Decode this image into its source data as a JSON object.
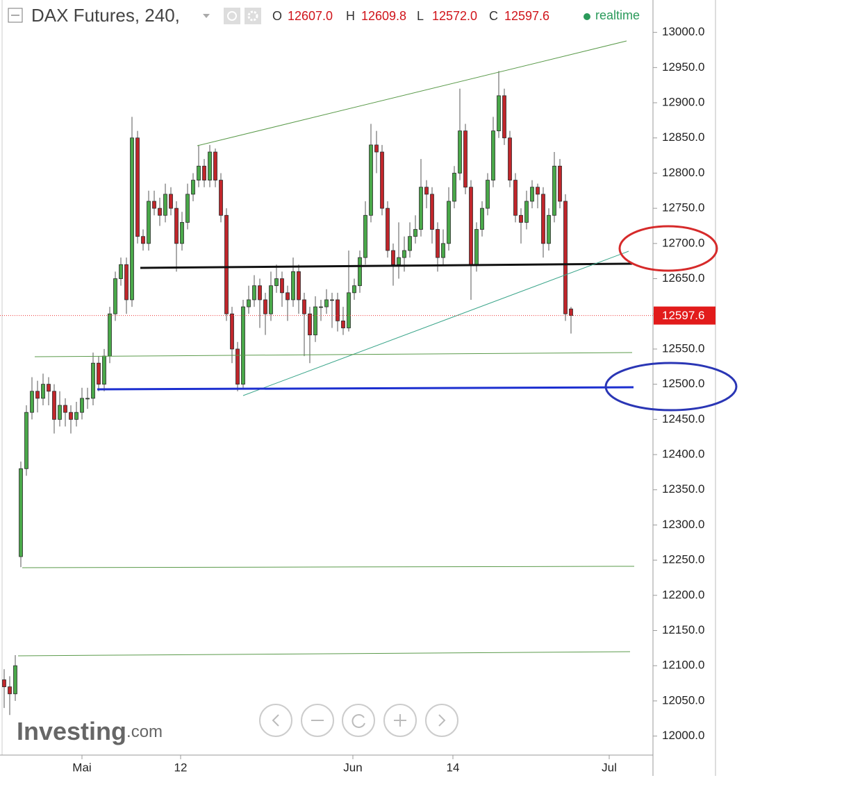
{
  "chart_data": {
    "type": "candlestick",
    "title": "DAX Futures, 240,",
    "status": "realtime",
    "ohlc_legend": [
      {
        "key": "O",
        "text": "12607.0"
      },
      {
        "key": "H",
        "text": "12609.8"
      },
      {
        "key": "L",
        "text": "12572.0"
      },
      {
        "key": "C",
        "text": "12597.6"
      }
    ],
    "watermark": "Investing",
    "watermark_suffix": ".com",
    "up_color": "#4aa84a",
    "down_color": "#c0262b",
    "x": [
      0,
      1,
      2,
      3,
      4,
      5,
      6,
      7,
      8,
      9,
      10,
      11,
      12,
      13,
      14,
      15,
      16,
      17,
      18,
      19,
      20,
      21,
      22,
      23,
      24,
      25,
      26,
      27,
      28,
      29,
      30,
      31,
      32,
      33,
      34,
      35,
      36,
      37,
      38,
      39,
      40,
      41,
      42,
      43,
      44,
      45,
      46,
      47,
      48,
      49,
      50,
      51,
      52,
      53,
      54,
      55,
      56,
      57,
      58,
      59,
      60,
      61,
      62,
      63,
      64,
      65,
      66,
      67,
      68,
      69,
      70,
      71,
      72,
      73,
      74,
      75,
      76,
      77,
      78,
      79,
      80,
      81,
      82,
      83,
      84,
      85,
      86,
      87,
      88,
      89,
      90,
      91,
      92,
      93,
      94,
      95,
      96,
      97,
      98,
      99,
      100,
      101,
      102
    ],
    "open": [
      12080,
      12070,
      12060,
      12255,
      12380,
      12460,
      12490,
      12480,
      12500,
      12490,
      12450,
      12470,
      12460,
      12450,
      12460,
      12480,
      12480,
      12530,
      12500,
      12540,
      12600,
      12650,
      12670,
      12620,
      12850,
      12710,
      12700,
      12760,
      12750,
      12740,
      12770,
      12750,
      12700,
      12730,
      12770,
      12790,
      12810,
      12790,
      12830,
      12790,
      12740,
      12600,
      12550,
      12500,
      12610,
      12620,
      12640,
      12620,
      12600,
      12640,
      12650,
      12630,
      12620,
      12660,
      12620,
      12600,
      12570,
      12610,
      12610,
      12620,
      12620,
      12590,
      12580,
      12630,
      12640,
      12680,
      12740,
      12840,
      12830,
      12750,
      12690,
      12670,
      12680,
      12690,
      12710,
      12720,
      12780,
      12770,
      12720,
      12680,
      12700,
      12760,
      12800,
      12860,
      12780,
      12670,
      12720,
      12750,
      12790,
      12860,
      12910,
      12850,
      12790,
      12740,
      12730,
      12760,
      12780,
      12770,
      12700,
      12740,
      12810,
      12760,
      12607
    ],
    "high": [
      12095,
      12085,
      12115,
      12390,
      12470,
      12510,
      12505,
      12515,
      12510,
      12500,
      12490,
      12480,
      12470,
      12475,
      12495,
      12495,
      12545,
      12540,
      12550,
      12610,
      12660,
      12680,
      12680,
      12880,
      12860,
      12720,
      12775,
      12775,
      12765,
      12785,
      12780,
      12760,
      12745,
      12785,
      12800,
      12840,
      12820,
      12840,
      12835,
      12800,
      12750,
      12610,
      12560,
      12620,
      12640,
      12655,
      12650,
      12630,
      12660,
      12670,
      12660,
      12640,
      12680,
      12670,
      12630,
      12610,
      12625,
      12620,
      12635,
      12630,
      12630,
      12610,
      12690,
      12650,
      12690,
      12760,
      12870,
      12860,
      12840,
      12760,
      12700,
      12730,
      12710,
      12730,
      12740,
      12820,
      12790,
      12780,
      12730,
      12720,
      12780,
      12810,
      12920,
      12870,
      12790,
      12730,
      12760,
      12800,
      12880,
      12945,
      12920,
      12860,
      12800,
      12750,
      12775,
      12790,
      12785,
      12780,
      12750,
      12830,
      12820,
      12770,
      12609.8
    ],
    "low": [
      12040,
      12030,
      12050,
      12240,
      12370,
      12450,
      12460,
      12470,
      12470,
      12430,
      12440,
      12440,
      12430,
      12440,
      12450,
      12465,
      12470,
      12490,
      12490,
      12530,
      12590,
      12640,
      12600,
      12610,
      12700,
      12690,
      12690,
      12740,
      12725,
      12730,
      12740,
      12660,
      12690,
      12720,
      12760,
      12780,
      12780,
      12780,
      12780,
      12730,
      12590,
      12530,
      12490,
      12495,
      12600,
      12610,
      12580,
      12570,
      12590,
      12630,
      12610,
      12590,
      12610,
      12600,
      12540,
      12530,
      12560,
      12590,
      12600,
      12580,
      12575,
      12570,
      12575,
      12620,
      12630,
      12670,
      12730,
      12800,
      12740,
      12680,
      12640,
      12650,
      12660,
      12680,
      12700,
      12710,
      12750,
      12700,
      12660,
      12670,
      12690,
      12750,
      12790,
      12770,
      12620,
      12660,
      12710,
      12740,
      12780,
      12850,
      12840,
      12780,
      12730,
      12700,
      12720,
      12750,
      12750,
      12680,
      12690,
      12730,
      12750,
      12590,
      12572
    ],
    "close": [
      12070,
      12060,
      12100,
      12380,
      12460,
      12490,
      12480,
      12500,
      12490,
      12450,
      12470,
      12460,
      12450,
      12460,
      12480,
      12480,
      12530,
      12500,
      12540,
      12600,
      12650,
      12670,
      12620,
      12850,
      12710,
      12700,
      12760,
      12750,
      12740,
      12770,
      12750,
      12700,
      12730,
      12770,
      12790,
      12810,
      12790,
      12830,
      12790,
      12740,
      12600,
      12550,
      12500,
      12610,
      12620,
      12640,
      12620,
      12600,
      12640,
      12650,
      12630,
      12620,
      12660,
      12620,
      12600,
      12570,
      12610,
      12610,
      12620,
      12620,
      12590,
      12580,
      12630,
      12640,
      12680,
      12740,
      12840,
      12830,
      12750,
      12690,
      12670,
      12680,
      12690,
      12710,
      12720,
      12780,
      12770,
      12720,
      12680,
      12700,
      12760,
      12800,
      12860,
      12780,
      12670,
      12720,
      12750,
      12790,
      12860,
      12910,
      12850,
      12790,
      12740,
      12730,
      12760,
      12780,
      12770,
      12700,
      12740,
      12810,
      12760,
      12600,
      12597.6
    ],
    "last_value_label": "12597.6",
    "xlim": [
      -0.75,
      116.75
    ],
    "xticks": [
      {
        "value": 14,
        "label": "Mai"
      },
      {
        "value": 31.75,
        "label": "12"
      },
      {
        "value": 62.75,
        "label": "Jun"
      },
      {
        "value": 80.75,
        "label": "14"
      },
      {
        "value": 108.875,
        "label": "Jul"
      }
    ],
    "ylim": [
      11973,
      13046
    ],
    "yticks": [
      {
        "value": 12000,
        "label": "12000.0"
      },
      {
        "value": 12050,
        "label": "12050.0"
      },
      {
        "value": 12100,
        "label": "12100.0"
      },
      {
        "value": 12150,
        "label": "12150.0"
      },
      {
        "value": 12200,
        "label": "12200.0"
      },
      {
        "value": 12250,
        "label": "12250.0"
      },
      {
        "value": 12300,
        "label": "12300.0"
      },
      {
        "value": 12350,
        "label": "12350.0"
      },
      {
        "value": 12400,
        "label": "12400.0"
      },
      {
        "value": 12450,
        "label": "12450.0"
      },
      {
        "value": 12500,
        "label": "12500.0"
      },
      {
        "value": 12550,
        "label": "12550.0"
      },
      {
        "value": 12600,
        "label": "12600.0"
      },
      {
        "value": 12650,
        "label": "12650.0"
      },
      {
        "value": 12700,
        "label": "12700.0"
      },
      {
        "value": 12750,
        "label": "12750.0"
      },
      {
        "value": 12800,
        "label": "12800.0"
      },
      {
        "value": 12850,
        "label": "12850.0"
      },
      {
        "value": 12900,
        "label": "12900.0"
      },
      {
        "value": 12950,
        "label": "12950.0"
      },
      {
        "value": 13000,
        "label": "13000.0"
      }
    ]
  }
}
